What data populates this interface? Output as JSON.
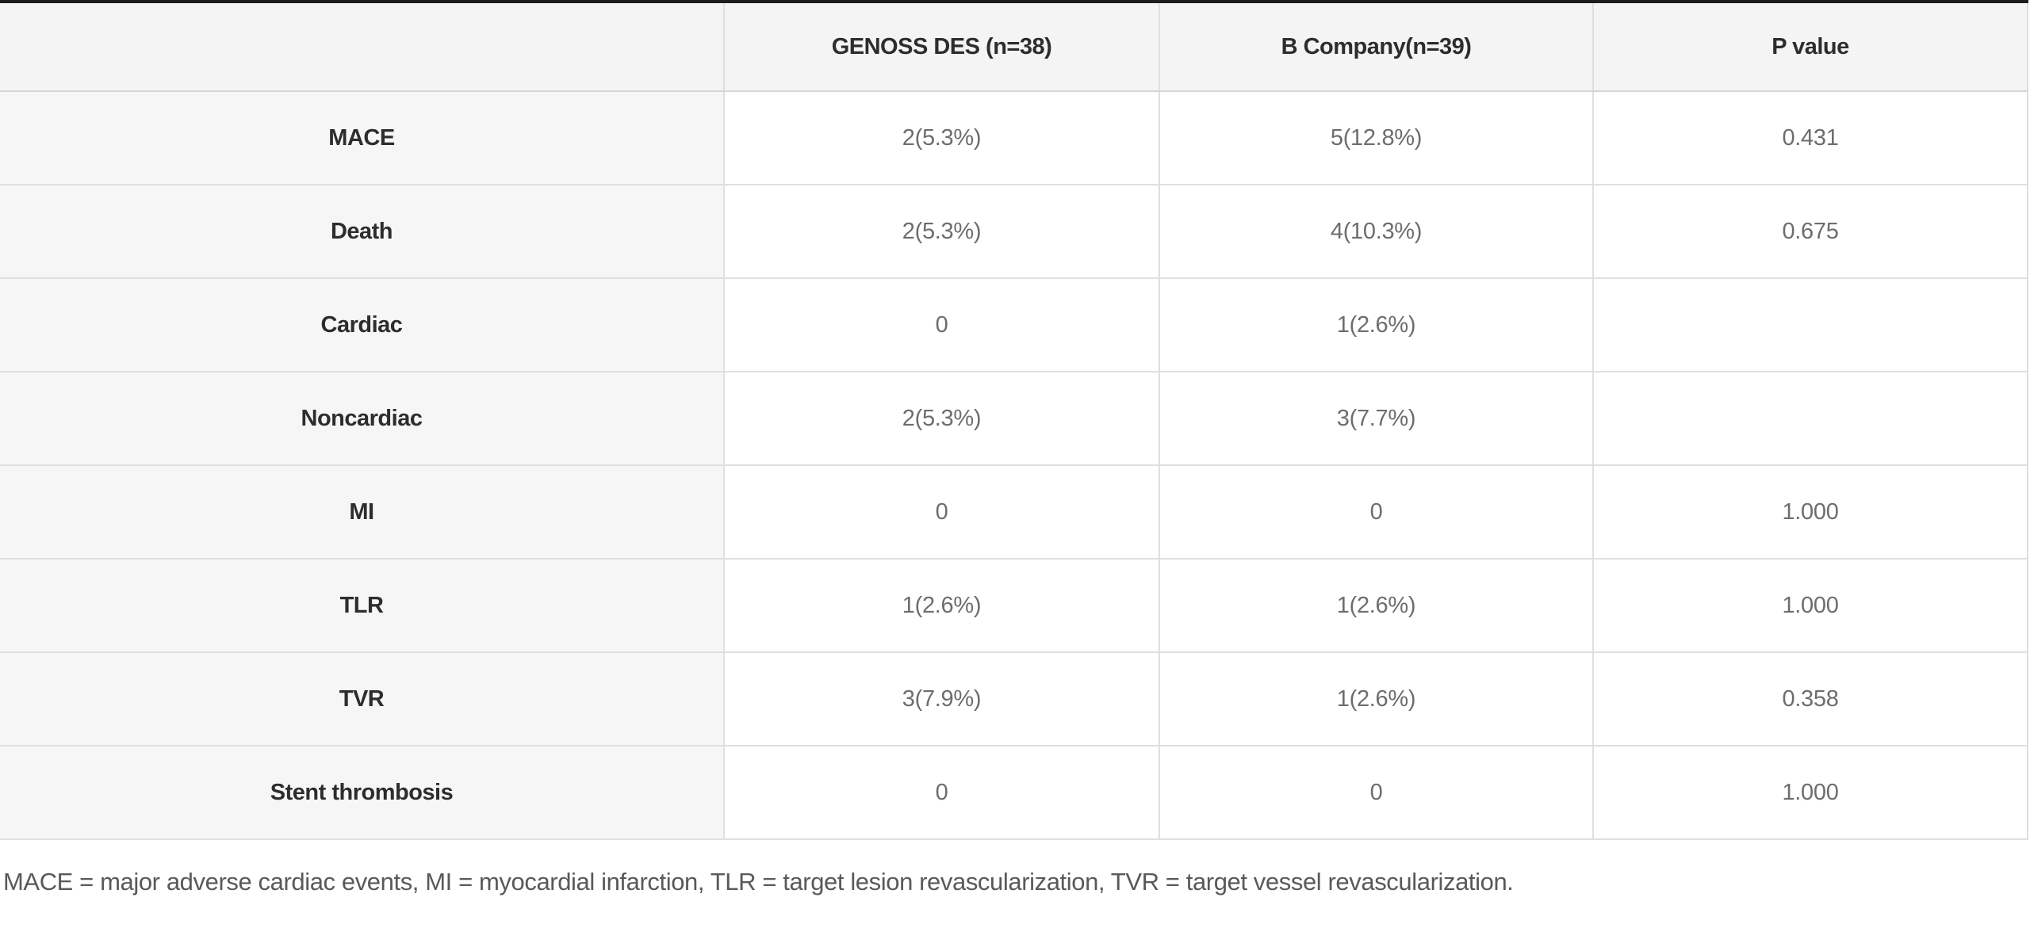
{
  "colors": {
    "table_top_border": "#1d1d1d",
    "header_background": "#f4f4f4",
    "row_label_background": "#f6f6f6",
    "cell_border": "#dfdfdf",
    "header_text": "#2d2d2d",
    "value_text": "#6d6d6d",
    "footnote_text": "#595959"
  },
  "table": {
    "columns": [
      {
        "label": ""
      },
      {
        "label": "GENOSS DES (n=38)"
      },
      {
        "label": "B Company(n=39)"
      },
      {
        "label": "P value"
      }
    ],
    "rows": [
      {
        "label": "MACE",
        "genoss": "2(5.3%)",
        "b_company": "5(12.8%)",
        "p_value": "0.431"
      },
      {
        "label": "Death",
        "genoss": "2(5.3%)",
        "b_company": "4(10.3%)",
        "p_value": "0.675"
      },
      {
        "label": "Cardiac",
        "genoss": "0",
        "b_company": "1(2.6%)",
        "p_value": ""
      },
      {
        "label": "Noncardiac",
        "genoss": "2(5.3%)",
        "b_company": "3(7.7%)",
        "p_value": ""
      },
      {
        "label": "MI",
        "genoss": "0",
        "b_company": "0",
        "p_value": "1.000"
      },
      {
        "label": "TLR",
        "genoss": "1(2.6%)",
        "b_company": "1(2.6%)",
        "p_value": "1.000"
      },
      {
        "label": "TVR",
        "genoss": "3(7.9%)",
        "b_company": "1(2.6%)",
        "p_value": "0.358"
      },
      {
        "label": "Stent thrombosis",
        "genoss": "0",
        "b_company": "0",
        "p_value": "1.000"
      }
    ],
    "footnote": "MACE = major adverse cardiac events, MI = myocardial infarction, TLR = target lesion revascularization, TVR = target vessel revascularization."
  }
}
